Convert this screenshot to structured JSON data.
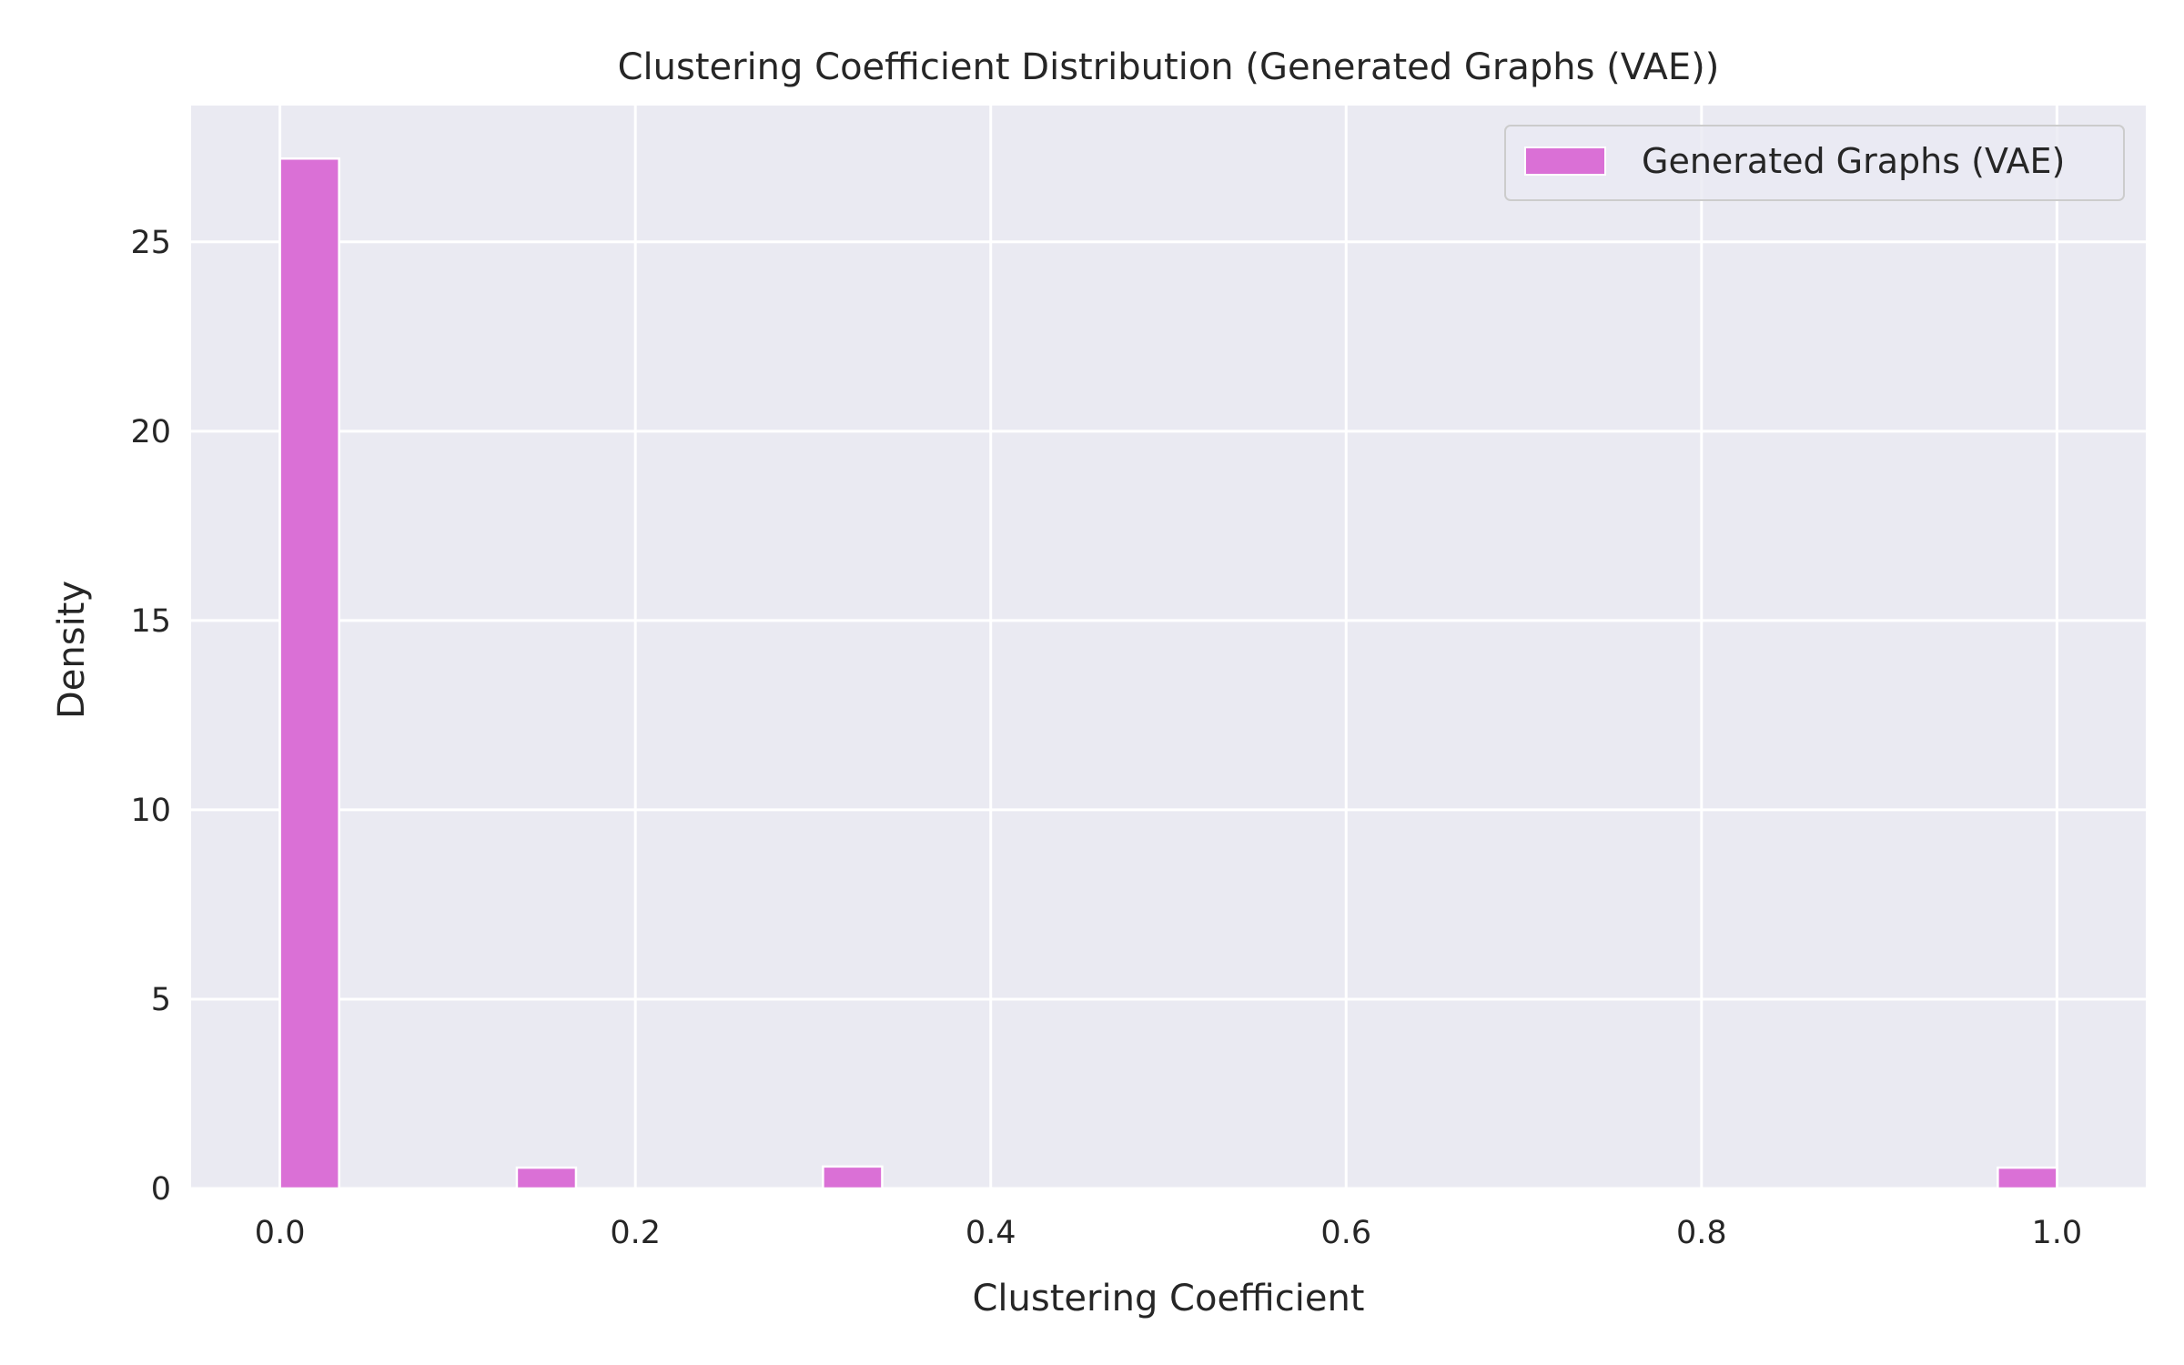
{
  "chart_data": {
    "type": "bar",
    "title": "Clustering Coefficient Distribution (Generated Graphs (VAE))",
    "xlabel": "Clustering Coefficient",
    "ylabel": "Density",
    "xlim": [
      -0.05,
      1.05
    ],
    "ylim": [
      0,
      28.6
    ],
    "xticks": [
      0.0,
      0.2,
      0.4,
      0.6,
      0.8,
      1.0
    ],
    "xtick_labels": [
      "0.0",
      "0.2",
      "0.4",
      "0.6",
      "0.8",
      "1.0"
    ],
    "yticks": [
      0,
      5,
      10,
      15,
      20,
      25
    ],
    "ytick_labels": [
      "0",
      "5",
      "10",
      "15",
      "20",
      "25"
    ],
    "bin_width": 0.0333,
    "series": [
      {
        "name": "Generated Graphs (VAE)",
        "color": "#da70d6",
        "bins": [
          {
            "x": 0.0,
            "value": 27.2
          },
          {
            "x": 0.1333,
            "value": 0.55
          },
          {
            "x": 0.3056,
            "value": 0.58
          },
          {
            "x": 0.9667,
            "value": 0.55
          }
        ]
      }
    ],
    "grid": true,
    "background": "#eaeaf2",
    "legend_position": "top-right"
  }
}
